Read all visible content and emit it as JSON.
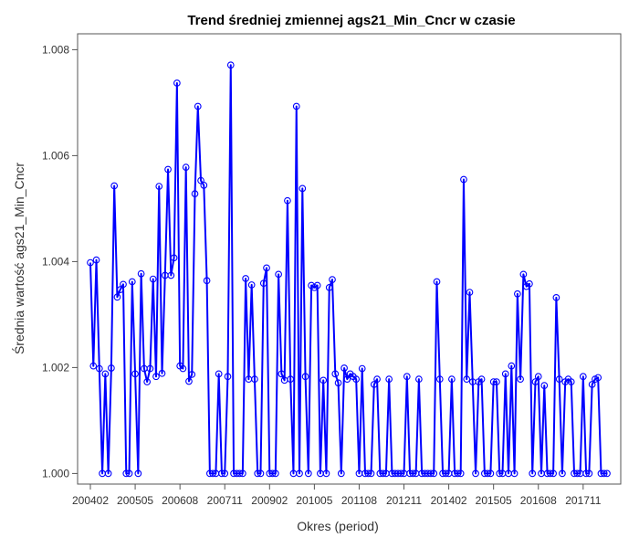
{
  "chart_data": {
    "type": "line",
    "title": "Trend średniej zmiennej ags21_Min_Cncr w czasie",
    "xlabel": "Okres (period)",
    "ylabel": "Średnia wartość ags21_Min_Cncr",
    "x_ticks": [
      "200402",
      "200505",
      "200608",
      "200711",
      "200902",
      "201005",
      "201108",
      "201211",
      "201402",
      "201505",
      "201608",
      "201711"
    ],
    "y_ticks": [
      "1.000",
      "1.002",
      "1.004",
      "1.006",
      "1.008"
    ],
    "ylim": [
      0.9998,
      1.0083
    ],
    "grid": false,
    "legend": "none",
    "colors": {
      "line": "#0000ff",
      "marker": "#0000ff"
    },
    "series": [
      {
        "values": [
          1.00398,
          1.00203,
          1.00403,
          1.00198,
          1.0,
          1.00188,
          1.0,
          1.00199,
          1.00543,
          1.00333,
          1.00347,
          1.00357,
          1.0,
          1.0,
          1.00362,
          1.00188,
          1.0,
          1.00377,
          1.00198,
          1.00173,
          1.00198,
          1.00367,
          1.00183,
          1.00542,
          1.00189,
          1.00374,
          1.00574,
          1.00374,
          1.00407,
          1.00737,
          1.00203,
          1.00198,
          1.00578,
          1.00174,
          1.00187,
          1.00528,
          1.00693,
          1.00553,
          1.00544,
          1.00364,
          1.0,
          1.0,
          1.0,
          1.00188,
          1.0,
          1.0,
          1.00183,
          1.00771,
          1.0,
          1.0,
          1.0,
          1.0,
          1.00368,
          1.00178,
          1.00356,
          1.00178,
          1.0,
          1.0,
          1.00359,
          1.00388,
          1.0,
          1.0,
          1.0,
          1.00376,
          1.00188,
          1.00176,
          1.00515,
          1.00178,
          1.0,
          1.00693,
          1.0,
          1.00538,
          1.00183,
          1.0,
          1.00355,
          1.00351,
          1.00355,
          1.0,
          1.00176,
          1.0,
          1.00351,
          1.00366,
          1.00188,
          1.00171,
          1.0,
          1.00199,
          1.00178,
          1.00188,
          1.00183,
          1.00178,
          1.0,
          1.00198,
          1.0,
          1.0,
          1.0,
          1.00168,
          1.00178,
          1.0,
          1.0,
          1.0,
          1.00178,
          1.0,
          1.0,
          1.0,
          1.0,
          1.0,
          1.00183,
          1.0,
          1.0,
          1.0,
          1.00178,
          1.0,
          1.0,
          1.0,
          1.0,
          1.0,
          1.00362,
          1.00178,
          1.0,
          1.0,
          1.0,
          1.00178,
          1.0,
          1.0,
          1.0,
          1.00555,
          1.00178,
          1.00342,
          1.00173,
          1.0,
          1.00173,
          1.00178,
          1.0,
          1.0,
          1.0,
          1.00173,
          1.00173,
          1.0,
          1.0,
          1.00188,
          1.0,
          1.00203,
          1.0,
          1.00339,
          1.00178,
          1.00376,
          1.00353,
          1.00358,
          1.0,
          1.00173,
          1.00183,
          1.0,
          1.00166,
          1.0,
          1.0,
          1.0,
          1.00332,
          1.00178,
          1.0,
          1.00173,
          1.00178,
          1.00173,
          1.0,
          1.0,
          1.0,
          1.00183,
          1.0,
          1.0,
          1.00168,
          1.00178,
          1.00181,
          1.0,
          1.0,
          1.0
        ]
      }
    ]
  }
}
